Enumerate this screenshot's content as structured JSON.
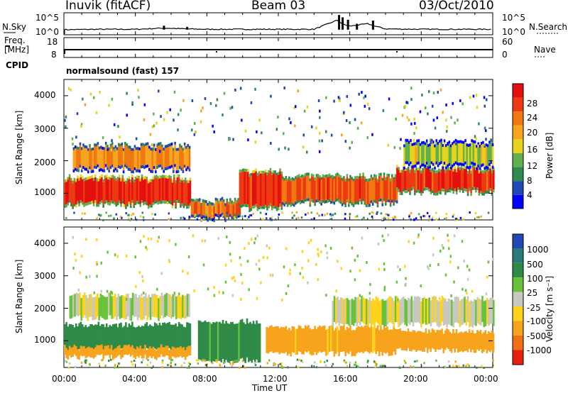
{
  "header": {
    "station": "Inuvik (fitACF)",
    "beam": "Beam 03",
    "date": "03/Oct/2010"
  },
  "strip": {
    "nsky_label": "N.Sky",
    "nsky_ticks": [
      "10^5",
      "10^0"
    ],
    "nsearch_label": "N.Search",
    "nsearch_ticks": [
      "10^5",
      "10^0"
    ],
    "freq_label_1": "Freq.",
    "freq_label_2": "[MHz]",
    "freq_ticks": [
      "18",
      "8"
    ],
    "nave_label": "Nave",
    "nave_ticks": [
      "60",
      "0"
    ],
    "cpid_label": "CPID",
    "cpid_text": "normalsound (fast) 157"
  },
  "power_panel": {
    "ylabel": "Slant Range [km]",
    "yticks": [
      "4000",
      "3000",
      "2000",
      "1000"
    ],
    "colorbar_label": "Power [dB]",
    "colorbar_ticks": [
      "28",
      "24",
      "20",
      "16",
      "12",
      "8",
      "4"
    ],
    "colorbar_colors": [
      "#0000ff",
      "#1e48b4",
      "#2e8a4e",
      "#5fb14f",
      "#e8d31c",
      "#f7a520",
      "#f07810",
      "#ee3a10",
      "#e41010"
    ]
  },
  "velocity_panel": {
    "ylabel": "Slant Range [km]",
    "yticks": [
      "4000",
      "3000",
      "2000",
      "1000"
    ],
    "colorbar_label": "Velocity [m s⁻¹]",
    "colorbar_ticks": [
      "1000",
      "500",
      "100",
      "25",
      "-25",
      "-100",
      "-500",
      "-1000"
    ],
    "colorbar_colors": [
      "#1f48b4",
      "#2a7a78",
      "#2f8a48",
      "#69c33a",
      "#c8c8c0",
      "#ffd21c",
      "#f7a31c",
      "#f07014",
      "#e82010"
    ]
  },
  "xaxis": {
    "label": "Time UT",
    "ticks": [
      "00:00",
      "04:00",
      "08:00",
      "12:00",
      "16:00",
      "20:00",
      "00:00"
    ]
  },
  "chart_data": [
    {
      "type": "line",
      "title": "N.Sky",
      "x_range": [
        "00:00",
        "24:00"
      ],
      "ylim_log10": [
        0,
        5
      ],
      "x": [
        0,
        2,
        4,
        5.6,
        6.8,
        8,
        10,
        12,
        14,
        15.3,
        15.6,
        16,
        17,
        17.4,
        18,
        20,
        22,
        24
      ],
      "values_log10": [
        1.1,
        1.2,
        1.2,
        1.5,
        1.3,
        1.2,
        1.2,
        1.2,
        1.2,
        3.5,
        2.5,
        2.0,
        2.6,
        2.0,
        1.3,
        1.2,
        1.2,
        1.2
      ]
    },
    {
      "type": "line",
      "title": "Freq. [MHz]",
      "ylim": [
        8,
        18
      ],
      "x": [
        0,
        24
      ],
      "values": [
        12,
        12
      ]
    },
    {
      "type": "heatmap",
      "title": "Power [dB]",
      "ylabel": "Slant Range [km]",
      "xlabel": "Time UT",
      "ylim": [
        180,
        4500
      ],
      "zlim": [
        0,
        30
      ],
      "bands": [
        {
          "t_start": 0,
          "t_end": 7.1,
          "range_km": [
            700,
            1400
          ],
          "power_db": 27
        },
        {
          "t_start": 7.1,
          "t_end": 9.8,
          "range_km": [
            300,
            700
          ],
          "power_db": 22
        },
        {
          "t_start": 9.8,
          "t_end": 12.2,
          "range_km": [
            600,
            1600
          ],
          "power_db": 26
        },
        {
          "t_start": 12.2,
          "t_end": 18.6,
          "range_km": [
            750,
            1450
          ],
          "power_db": 24
        },
        {
          "t_start": 18.6,
          "t_end": 24,
          "range_km": [
            1100,
            1700
          ],
          "power_db": 26
        },
        {
          "t_start": 0.5,
          "t_end": 7,
          "range_km": [
            1800,
            2400
          ],
          "power_db": 20
        },
        {
          "t_start": 19,
          "t_end": 24,
          "range_km": [
            1900,
            2500
          ],
          "power_db": 14
        }
      ]
    },
    {
      "type": "heatmap",
      "title": "Velocity [m s⁻¹]",
      "ylabel": "Slant Range [km]",
      "xlabel": "Time UT",
      "ylim": [
        180,
        4500
      ],
      "zlim": [
        -1000,
        1000
      ],
      "bands": [
        {
          "t_start": 0,
          "t_end": 7.1,
          "range_km": [
            700,
            1500
          ],
          "velocity": 200
        },
        {
          "t_start": 0,
          "t_end": 7.1,
          "range_km": [
            500,
            800
          ],
          "velocity": -200
        },
        {
          "t_start": 7.5,
          "t_end": 11,
          "range_km": [
            400,
            1600
          ],
          "velocity": 150
        },
        {
          "t_start": 11.3,
          "t_end": 18.5,
          "range_km": [
            600,
            1400
          ],
          "velocity": -150
        },
        {
          "t_start": 18.5,
          "t_end": 24,
          "range_km": [
            700,
            1300
          ],
          "velocity": -300
        },
        {
          "t_start": 0.3,
          "t_end": 7,
          "range_km": [
            1700,
            2400
          ],
          "velocity": 0
        },
        {
          "t_start": 15,
          "t_end": 24,
          "range_km": [
            1500,
            2300
          ],
          "velocity": 0
        }
      ]
    }
  ]
}
